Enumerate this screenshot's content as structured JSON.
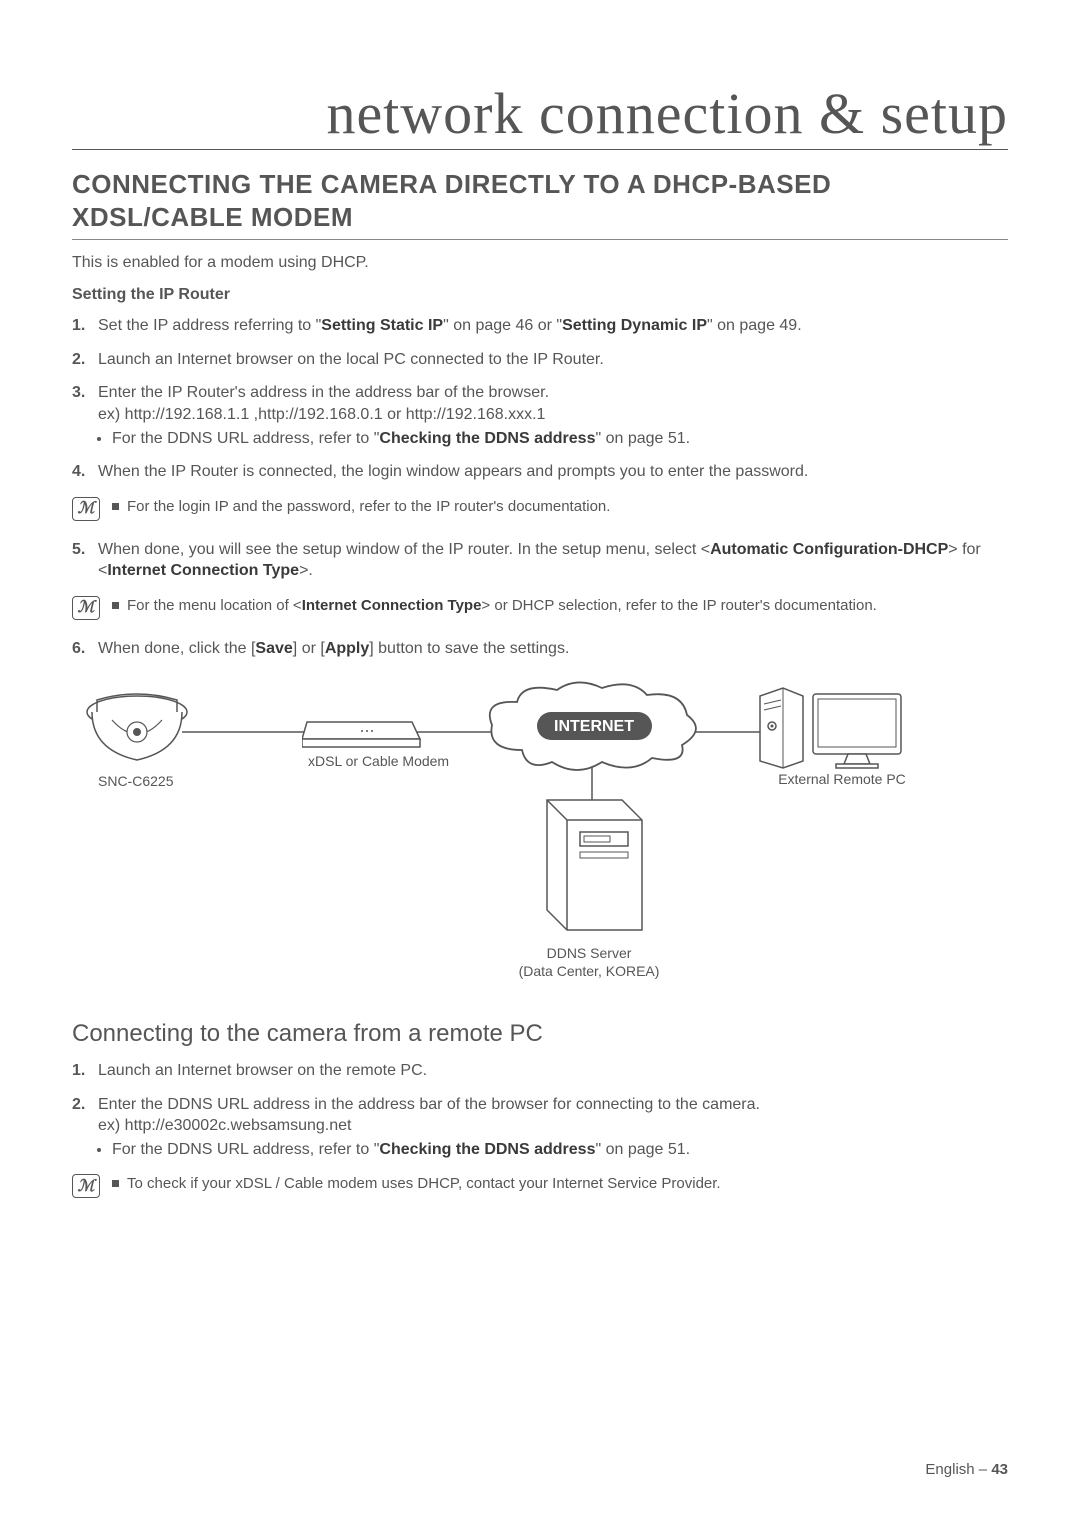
{
  "header": {
    "title": "network connection & setup"
  },
  "section": {
    "title": "CONNECTING THE CAMERA DIRECTLY TO A DHCP-BASED XDSL/CABLE MODEM",
    "intro": "This is enabled for a modem using DHCP.",
    "sub": "Setting the IP Router",
    "steps": [
      {
        "n": "1.",
        "html": "Set the IP address referring to \"<b>Setting Static IP</b>\" on page 46 or \"<b>Setting Dynamic IP</b>\" on page 49."
      },
      {
        "n": "2.",
        "html": "Launch an Internet browser on the local PC connected to the IP Router."
      },
      {
        "n": "3.",
        "html": "Enter the IP Router's address in the address bar of the browser.<br>ex) http://192.168.1.1 ,http://192.168.0.1 or http://192.168.xxx.1",
        "bullets": [
          "For the DDNS URL address, refer to \"<b>Checking the DDNS address</b>\" on page 51."
        ]
      },
      {
        "n": "4.",
        "html": "When the IP Router is connected, the login window appears and prompts you to enter the password."
      }
    ],
    "note1": "For the login IP and the password, refer to the IP router's documentation.",
    "step5": {
      "n": "5.",
      "html": "When done, you will see the setup window of the IP router. In the setup menu, select &lt;<b>Automatic Configuration-DHCP</b>&gt; for &lt;<b>Internet Connection Type</b>&gt;."
    },
    "note2": "For the menu location of <<b>Internet Connection Type</b>> or DHCP selection, refer to the IP router's documentation.",
    "step6": {
      "n": "6.",
      "html": "When done, click the [<b>Save</b>] or [<b>Apply</b>] button to save the settings."
    }
  },
  "diagram": {
    "camera_label": "SNC-C6225",
    "modem_label": "xDSL or Cable Modem",
    "cloud_label": "INTERNET",
    "pc_label": "External Remote PC",
    "server_label1": "DDNS Server",
    "server_label2": "(Data Center, KOREA)",
    "line_color": "#565656",
    "cloud_fill": "#ffffff",
    "cloud_stroke": "#565656"
  },
  "section2": {
    "title": "Connecting to the camera from a remote PC",
    "steps": [
      {
        "n": "1.",
        "html": "Launch an Internet browser on the remote PC."
      },
      {
        "n": "2.",
        "html": "Enter the DDNS URL address in the address bar of the browser for connecting to the camera.<br>ex) http://e30002c.websamsung.net",
        "bullets": [
          "For the DDNS URL address, refer to \"<b>Checking the DDNS address</b>\" on page 51."
        ]
      }
    ],
    "note": "To check if your xDSL / Cable modem uses DHCP, contact your Internet Service Provider."
  },
  "footer": {
    "lang": "English",
    "sep": "–",
    "page": "43"
  }
}
